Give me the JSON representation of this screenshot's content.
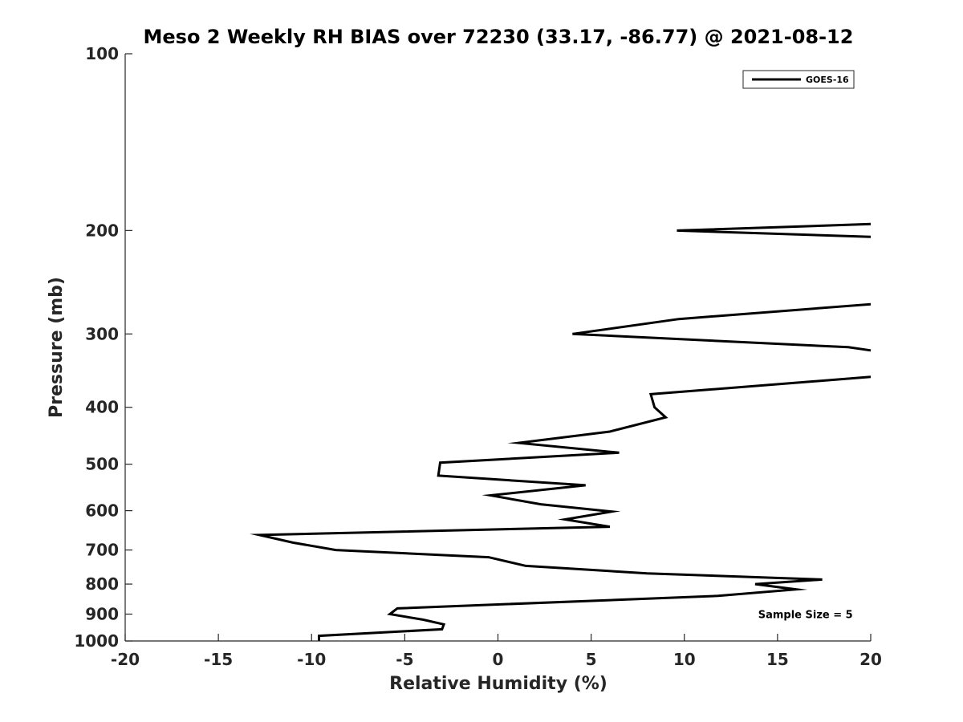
{
  "chart_data": {
    "type": "line",
    "title": "Meso 2 Weekly RH BIAS over 72230 (33.17, -86.77) @ 2021-08-12",
    "xlabel": "Relative Humidity (%)",
    "ylabel": "Pressure (mb)",
    "xlim": [
      -20,
      20
    ],
    "ylim": [
      1000,
      100
    ],
    "yscale": "log",
    "x_ticks": [
      -20,
      -15,
      -10,
      -5,
      0,
      5,
      10,
      15,
      20
    ],
    "y_ticks": [
      100,
      200,
      300,
      400,
      500,
      600,
      700,
      800,
      900,
      1000
    ],
    "grid": false,
    "legend_position": "top-right",
    "series": [
      {
        "name": "GOES-16",
        "color": "#000000",
        "segments": [
          [
            {
              "x": 20.0,
              "p": 195
            },
            {
              "x": 9.6,
              "p": 200
            },
            {
              "x": 20.0,
              "p": 205
            }
          ],
          [
            {
              "x": 20.0,
              "p": 267
            },
            {
              "x": 9.7,
              "p": 283
            },
            {
              "x": 4.0,
              "p": 300
            },
            {
              "x": 18.8,
              "p": 316
            },
            {
              "x": 20.0,
              "p": 320
            }
          ],
          [
            {
              "x": 20.0,
              "p": 355
            },
            {
              "x": 8.2,
              "p": 380
            },
            {
              "x": 8.4,
              "p": 400
            },
            {
              "x": 9.0,
              "p": 416
            },
            {
              "x": 6.0,
              "p": 440
            },
            {
              "x": 1.1,
              "p": 460
            },
            {
              "x": 6.5,
              "p": 478
            },
            {
              "x": -3.1,
              "p": 497
            },
            {
              "x": -3.2,
              "p": 523
            },
            {
              "x": 4.7,
              "p": 543
            },
            {
              "x": -0.4,
              "p": 565
            },
            {
              "x": 2.3,
              "p": 585
            },
            {
              "x": 6.1,
              "p": 602
            },
            {
              "x": 3.6,
              "p": 621
            },
            {
              "x": 6.0,
              "p": 639
            },
            {
              "x": -12.8,
              "p": 660
            },
            {
              "x": -11.0,
              "p": 680
            },
            {
              "x": -8.7,
              "p": 700
            },
            {
              "x": -0.5,
              "p": 720
            },
            {
              "x": 1.5,
              "p": 745
            },
            {
              "x": 8.0,
              "p": 767
            },
            {
              "x": 17.4,
              "p": 786
            },
            {
              "x": 13.8,
              "p": 800
            },
            {
              "x": 16.0,
              "p": 817
            },
            {
              "x": 11.8,
              "p": 838
            },
            {
              "x": -5.4,
              "p": 880
            },
            {
              "x": -5.8,
              "p": 900
            },
            {
              "x": -4.0,
              "p": 920
            },
            {
              "x": -2.9,
              "p": 937
            },
            {
              "x": -3.0,
              "p": 955
            },
            {
              "x": -9.6,
              "p": 980
            },
            {
              "x": -9.6,
              "p": 1000
            }
          ]
        ]
      }
    ],
    "annotations": [
      {
        "text": "Sample Size = 5",
        "x": 16.5,
        "p": 900
      }
    ]
  }
}
